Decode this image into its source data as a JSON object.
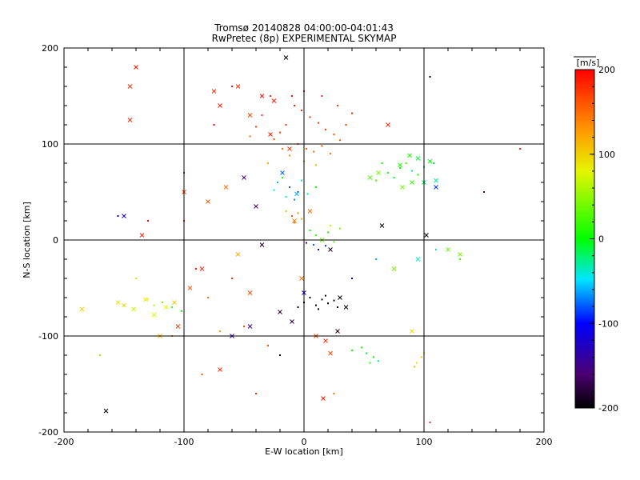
{
  "chart_data": {
    "type": "scatter",
    "title": "Tromsø 20140828 04:00:00-04:01:43",
    "subtitle": "RwPretec (8p) EXPERIMENTAL SKYMAP",
    "xlabel": "E-W location [km]",
    "ylabel": "N-S location [km]",
    "xlim": [
      -200,
      200
    ],
    "ylim": [
      -200,
      200
    ],
    "xticks": [
      -200,
      -100,
      0,
      100,
      200
    ],
    "yticks": [
      -200,
      -100,
      0,
      100,
      200
    ],
    "grid": true,
    "colorbar": {
      "label": "[m/s]",
      "range": [
        -200,
        200
      ],
      "ticks": [
        200,
        100,
        0,
        -100,
        -200
      ],
      "colormap": "rainbow (black-purple-blue-cyan-green-yellow-red)"
    },
    "series": [
      {
        "marker": "dot",
        "points": [
          [
            -8,
            140,
            190
          ],
          [
            -2,
            135,
            185
          ],
          [
            5,
            128,
            180
          ],
          [
            12,
            122,
            175
          ],
          [
            18,
            115,
            170
          ],
          [
            25,
            110,
            165
          ],
          [
            30,
            104,
            160
          ],
          [
            -15,
            120,
            175
          ],
          [
            -20,
            112,
            170
          ],
          [
            -25,
            105,
            165
          ],
          [
            -5,
            100,
            160
          ],
          [
            2,
            95,
            155
          ],
          [
            8,
            92,
            150
          ],
          [
            15,
            98,
            160
          ],
          [
            22,
            90,
            150
          ],
          [
            -12,
            88,
            140
          ],
          [
            -18,
            95,
            150
          ],
          [
            -30,
            80,
            120
          ],
          [
            0,
            82,
            130
          ],
          [
            10,
            78,
            120
          ],
          [
            -35,
            130,
            180
          ],
          [
            -40,
            118,
            170
          ],
          [
            -45,
            108,
            150
          ],
          [
            35,
            120,
            170
          ],
          [
            40,
            132,
            180
          ],
          [
            -10,
            150,
            190
          ],
          [
            0,
            155,
            185
          ],
          [
            15,
            150,
            180
          ],
          [
            28,
            140,
            175
          ],
          [
            -28,
            150,
            180
          ],
          [
            -22,
            60,
            -60
          ],
          [
            -12,
            55,
            -80
          ],
          [
            -5,
            50,
            -90
          ],
          [
            -15,
            45,
            -50
          ],
          [
            -8,
            42,
            -70
          ],
          [
            3,
            48,
            -20
          ],
          [
            10,
            55,
            0
          ],
          [
            -18,
            65,
            10
          ],
          [
            -25,
            52,
            -40
          ],
          [
            -2,
            62,
            -30
          ],
          [
            -10,
            25,
            160
          ],
          [
            -5,
            28,
            140
          ],
          [
            -2,
            22,
            120
          ],
          [
            -15,
            30,
            110
          ],
          [
            -8,
            18,
            150
          ],
          [
            5,
            10,
            0
          ],
          [
            10,
            5,
            20
          ],
          [
            15,
            0,
            -10
          ],
          [
            20,
            8,
            10
          ],
          [
            25,
            -2,
            30
          ],
          [
            30,
            12,
            40
          ],
          [
            8,
            -5,
            -80
          ],
          [
            12,
            -10,
            -130
          ],
          [
            2,
            -3,
            -150
          ],
          [
            18,
            -6,
            -90
          ],
          [
            22,
            15,
            60
          ],
          [
            0,
            -65,
            -200
          ],
          [
            5,
            -60,
            -200
          ],
          [
            10,
            -68,
            -200
          ],
          [
            15,
            -62,
            -195
          ],
          [
            20,
            -66,
            -200
          ],
          [
            25,
            -63,
            -190
          ],
          [
            28,
            -70,
            -200
          ],
          [
            -5,
            -70,
            -195
          ],
          [
            12,
            -72,
            -200
          ],
          [
            18,
            -58,
            -185
          ],
          [
            70,
            70,
            10
          ],
          [
            75,
            65,
            -10
          ],
          [
            80,
            75,
            0
          ],
          [
            85,
            80,
            20
          ],
          [
            90,
            72,
            -20
          ],
          [
            95,
            68,
            10
          ],
          [
            100,
            76,
            -30
          ],
          [
            108,
            80,
            -10
          ],
          [
            60,
            62,
            30
          ],
          [
            65,
            80,
            0
          ],
          [
            -110,
            -70,
            20
          ],
          [
            -118,
            -65,
            40
          ],
          [
            -125,
            -68,
            60
          ],
          [
            -102,
            -74,
            0
          ],
          [
            -130,
            -62,
            80
          ],
          [
            52,
            -118,
            -10
          ],
          [
            58,
            -122,
            0
          ],
          [
            48,
            -112,
            10
          ],
          [
            62,
            -126,
            -20
          ],
          [
            55,
            -128,
            20
          ],
          [
            40,
            -115,
            5
          ],
          [
            94,
            -128,
            90
          ],
          [
            98,
            -122,
            100
          ],
          [
            92,
            -132,
            110
          ],
          [
            100,
            -118,
            95
          ],
          [
            -60,
            -40,
            180
          ],
          [
            -80,
            -60,
            150
          ],
          [
            -50,
            -90,
            170
          ],
          [
            -70,
            -95,
            130
          ],
          [
            -90,
            -30,
            190
          ],
          [
            -30,
            -110,
            160
          ],
          [
            -110,
            -100,
            140
          ],
          [
            60,
            -20,
            -60
          ],
          [
            40,
            -40,
            -100
          ],
          [
            110,
            -10,
            -40
          ],
          [
            -100,
            70,
            190
          ],
          [
            -75,
            120,
            200
          ],
          [
            -60,
            160,
            190
          ],
          [
            130,
            -20,
            20
          ],
          [
            150,
            50,
            -150
          ],
          [
            180,
            95,
            190
          ],
          [
            -140,
            -40,
            60
          ],
          [
            -40,
            -160,
            180
          ],
          [
            25,
            -160,
            150
          ],
          [
            105,
            -190,
            180
          ],
          [
            -170,
            -120,
            50
          ],
          [
            -100,
            20,
            180
          ],
          [
            -85,
            -140,
            160
          ],
          [
            105,
            170,
            -200
          ],
          [
            -20,
            -120,
            -190
          ],
          [
            -155,
            25,
            -100
          ],
          [
            -130,
            20,
            200
          ]
        ]
      },
      {
        "marker": "x",
        "points": [
          [
            -140,
            180,
            190
          ],
          [
            -145,
            160,
            180
          ],
          [
            -150,
            25,
            -120
          ],
          [
            -145,
            125,
            185
          ],
          [
            -75,
            155,
            180
          ],
          [
            -55,
            160,
            175
          ],
          [
            -35,
            150,
            190
          ],
          [
            -45,
            130,
            170
          ],
          [
            -70,
            140,
            185
          ],
          [
            -25,
            145,
            190
          ],
          [
            -100,
            50,
            175
          ],
          [
            -80,
            40,
            160
          ],
          [
            -65,
            55,
            150
          ],
          [
            -50,
            65,
            -160
          ],
          [
            -40,
            35,
            -170
          ],
          [
            -95,
            -50,
            160
          ],
          [
            -105,
            -90,
            170
          ],
          [
            -85,
            -30,
            180
          ],
          [
            -60,
            -100,
            -140
          ],
          [
            -70,
            -135,
            180
          ],
          [
            -15,
            190,
            -200
          ],
          [
            -20,
            -75,
            -180
          ],
          [
            -35,
            -5,
            -190
          ],
          [
            -45,
            -90,
            -150
          ],
          [
            -55,
            -15,
            120
          ],
          [
            -45,
            -55,
            165
          ],
          [
            -135,
            5,
            185
          ],
          [
            -120,
            -100,
            110
          ],
          [
            -155,
            -65,
            90
          ],
          [
            -185,
            -72,
            100
          ],
          [
            -165,
            -178,
            -200
          ],
          [
            -150,
            -68,
            95
          ],
          [
            -142,
            -72,
            70
          ],
          [
            -132,
            -62,
            90
          ],
          [
            -125,
            -78,
            75
          ],
          [
            -115,
            -70,
            80
          ],
          [
            -108,
            -65,
            100
          ],
          [
            -28,
            110,
            185
          ],
          [
            -12,
            95,
            175
          ],
          [
            -18,
            70,
            -80
          ],
          [
            -6,
            48,
            -60
          ],
          [
            5,
            30,
            150
          ],
          [
            -8,
            20,
            140
          ],
          [
            15,
            0,
            40
          ],
          [
            22,
            -10,
            -190
          ],
          [
            30,
            -60,
            -200
          ],
          [
            35,
            -70,
            -200
          ],
          [
            70,
            120,
            180
          ],
          [
            75,
            -30,
            40
          ],
          [
            90,
            -95,
            95
          ],
          [
            100,
            60,
            -20
          ],
          [
            110,
            55,
            -90
          ],
          [
            120,
            -10,
            40
          ],
          [
            130,
            -15,
            40
          ],
          [
            95,
            -20,
            -40
          ],
          [
            102,
            5,
            -200
          ],
          [
            65,
            15,
            -200
          ],
          [
            55,
            65,
            30
          ],
          [
            62,
            70,
            40
          ],
          [
            80,
            78,
            10
          ],
          [
            88,
            88,
            10
          ],
          [
            95,
            85,
            -10
          ],
          [
            105,
            82,
            0
          ],
          [
            110,
            62,
            -30
          ],
          [
            82,
            55,
            40
          ],
          [
            90,
            60,
            20
          ],
          [
            18,
            -105,
            180
          ],
          [
            22,
            -118,
            170
          ],
          [
            16,
            -165,
            190
          ],
          [
            10,
            -100,
            170
          ],
          [
            -10,
            -85,
            -180
          ],
          [
            28,
            -95,
            -190
          ],
          [
            -2,
            -40,
            150
          ],
          [
            0,
            -55,
            -130
          ]
        ]
      }
    ]
  }
}
